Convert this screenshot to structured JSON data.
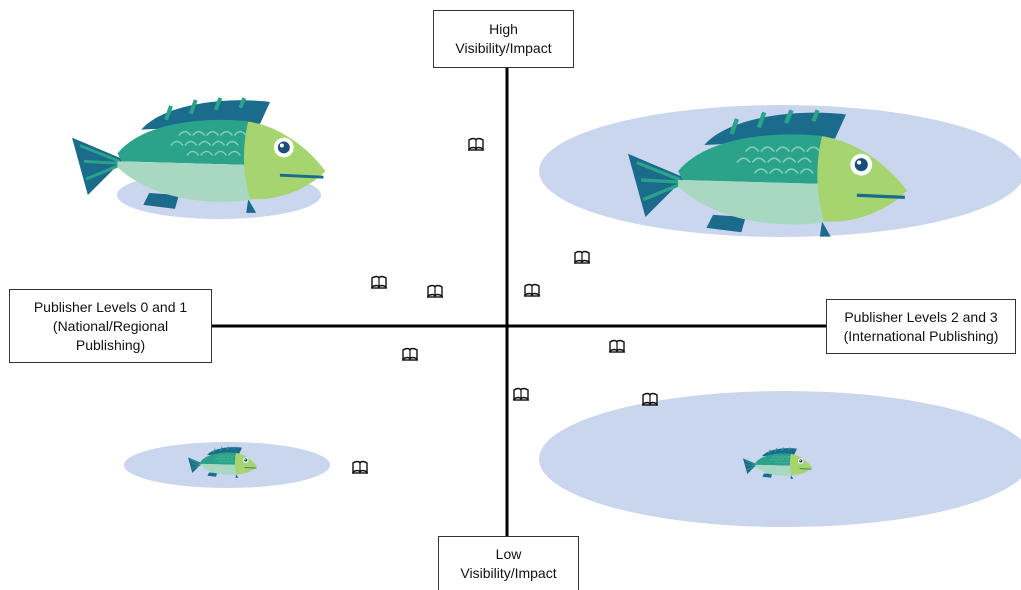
{
  "axes": {
    "top": {
      "line1": "High",
      "line2": "Visibility/Impact"
    },
    "bottom": {
      "line1": "Low",
      "line2": "Visibility/Impact"
    },
    "left": {
      "line1": "Publisher Levels 0 and 1",
      "line2": "(National/Regional",
      "line3": "Publishing)"
    },
    "right": {
      "line1": "Publisher Levels 2 and 3",
      "line2": "(International Publishing)"
    }
  },
  "colors": {
    "pond": "#cad6ee",
    "fish_body": "#2aa38a",
    "fish_belly": "#a9d8c2",
    "fish_head": "#a6d46e",
    "fish_fin": "#1a6b8c",
    "axis": "#000000"
  },
  "icons": [
    "open-book-icon",
    "fish-icon"
  ]
}
